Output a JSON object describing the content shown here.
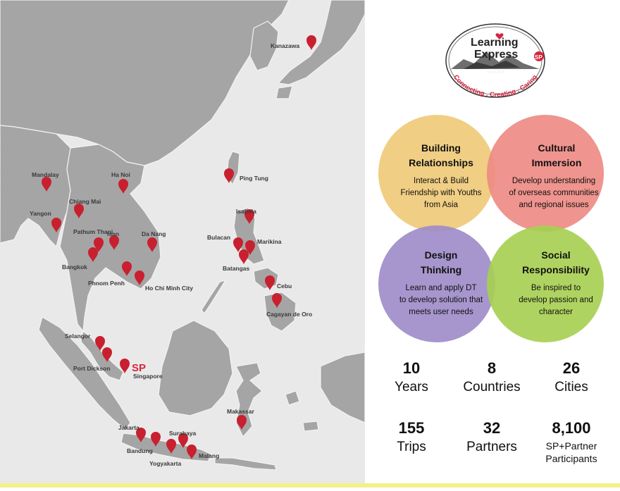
{
  "map": {
    "cities": [
      {
        "name": "Kanazawa"
      },
      {
        "name": "Ping Tung"
      },
      {
        "name": "Mandalay"
      },
      {
        "name": "Ha Noi"
      },
      {
        "name": "Chiang Mai"
      },
      {
        "name": "Yangon"
      },
      {
        "name": "Pathum Thani"
      },
      {
        "name": "Isan"
      },
      {
        "name": "Da Nang"
      },
      {
        "name": "Bangkok"
      },
      {
        "name": "Phnom Penh"
      },
      {
        "name": "Ho Chi Minh City"
      },
      {
        "name": "Isabela"
      },
      {
        "name": "Bulacan"
      },
      {
        "name": "Marikina"
      },
      {
        "name": "Batangas"
      },
      {
        "name": "Cebu"
      },
      {
        "name": "Cagayan de Oro"
      },
      {
        "name": "Selangor"
      },
      {
        "name": "Port Dickson"
      },
      {
        "name": "Singapore"
      },
      {
        "name": "Makassar"
      },
      {
        "name": "Jakarta"
      },
      {
        "name": "Surabaya"
      },
      {
        "name": "Bandung"
      },
      {
        "name": "Yogyakarta"
      },
      {
        "name": "Malang"
      }
    ],
    "sp_marker": "SP"
  },
  "logo": {
    "line1": "Learning",
    "line2": "Express",
    "badge": "SP",
    "since": "Since 2008",
    "tagline": "Connecting . Creating . Caring"
  },
  "pillars": [
    {
      "title1": "Building",
      "title2": "Relationships",
      "lines": [
        "Interact & Build",
        "Friendship with Youths",
        "from Asia"
      ],
      "color": "#efca78"
    },
    {
      "title1": "Cultural",
      "title2": "Immersion",
      "lines": [
        "Develop understanding",
        "of overseas communities",
        "and regional issues"
      ],
      "color": "#ee8b84"
    },
    {
      "title1": "Design",
      "title2": "Thinking",
      "lines": [
        "Learn and apply DT",
        "to develop solution that",
        "meets user needs"
      ],
      "color": "#9e8dc9"
    },
    {
      "title1": "Social",
      "title2": "Responsibility",
      "lines": [
        "Be inspired to",
        "develop passion and",
        "character"
      ],
      "color": "#a8cf52"
    }
  ],
  "stats": [
    {
      "value": "10",
      "label": "Years"
    },
    {
      "value": "8",
      "label": "Countries"
    },
    {
      "value": "26",
      "label": "Cities"
    },
    {
      "value": "155",
      "label": "Trips"
    },
    {
      "value": "32",
      "label": "Partners"
    },
    {
      "value": "8,100",
      "label": "SP+Partner Participants"
    }
  ],
  "colors": {
    "pin": "#c8202f",
    "land": "#a3a3a3",
    "sea": "#e9e9e9",
    "accent": "#d8243c"
  }
}
